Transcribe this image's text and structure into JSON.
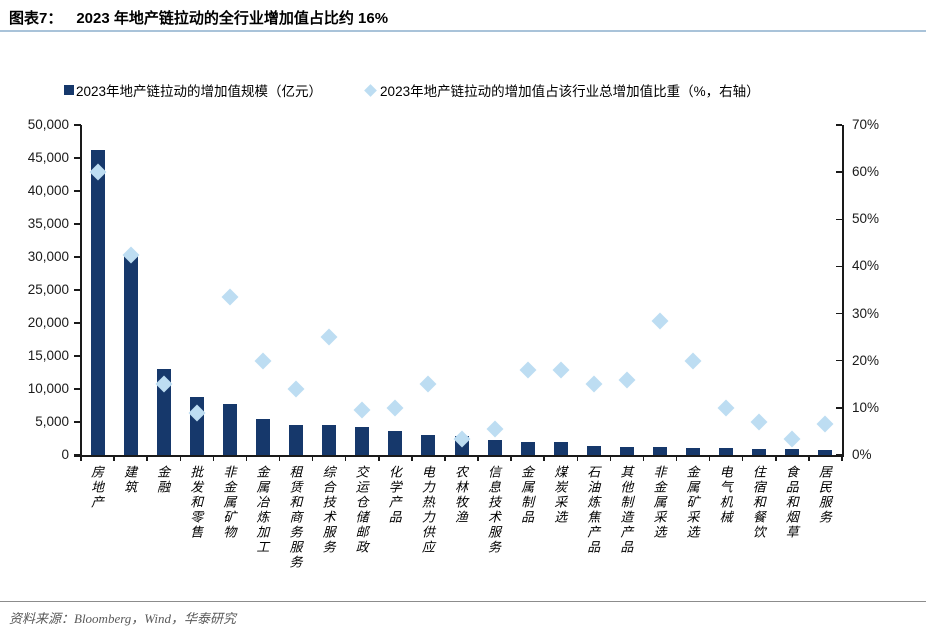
{
  "header": {
    "label": "图表7：",
    "title": "2023 年地产链拉动的全行业增加值占比约 16%"
  },
  "chart_data": {
    "type": "combo",
    "title": "2023 年地产链拉动的全行业增加值占比约 16%",
    "categories": [
      "房地产",
      "建筑",
      "金融",
      "批发和零售",
      "非金属矿物",
      "金属冶炼加工",
      "租赁和商务服务",
      "综合技术服务",
      "交运仓储邮政",
      "化学产品",
      "电力热力供应",
      "农林牧渔",
      "信息技术服务",
      "金属制品",
      "煤炭采选",
      "石油炼焦产品",
      "其他制造产品",
      "非金属采选",
      "金属矿采选",
      "电气机械",
      "住宿和餐饮",
      "食品和烟草",
      "居民服务"
    ],
    "series": [
      {
        "name": "2023年地产链拉动的增加值规模（亿元）",
        "type": "bar",
        "axis": "left",
        "color": "#16386B",
        "values": [
          46200,
          30300,
          13000,
          8800,
          7700,
          5500,
          4600,
          4500,
          4300,
          3600,
          3100,
          2900,
          2300,
          2000,
          1900,
          1400,
          1250,
          1200,
          1050,
          1000,
          900,
          850,
          800
        ]
      },
      {
        "name": "2023年地产链拉动的增加值占该行业总增加值比重（%，右轴）",
        "type": "scatter",
        "marker": "diamond",
        "axis": "right",
        "color": "#BDDDF2",
        "values": [
          60,
          42.5,
          15,
          9,
          33.5,
          20,
          14,
          25,
          9.5,
          10,
          15,
          3.5,
          5.5,
          18,
          18,
          15,
          16,
          28.5,
          20,
          10,
          7,
          3.5,
          6.5
        ]
      }
    ],
    "left_axis": {
      "min": 0,
      "max": 50000,
      "step": 5000,
      "tick_labels": [
        "0",
        "5,000",
        "10,000",
        "15,000",
        "20,000",
        "25,000",
        "30,000",
        "35,000",
        "40,000",
        "45,000",
        "50,000"
      ]
    },
    "right_axis": {
      "min": 0,
      "max": 70,
      "step": 10,
      "unit": "%",
      "tick_labels": [
        "0%",
        "10%",
        "20%",
        "30%",
        "40%",
        "50%",
        "60%",
        "70%"
      ]
    },
    "grid": false,
    "legend_position": "top-left"
  },
  "footer": {
    "source": "资料来源：Bloomberg，Wind，华泰研究"
  }
}
